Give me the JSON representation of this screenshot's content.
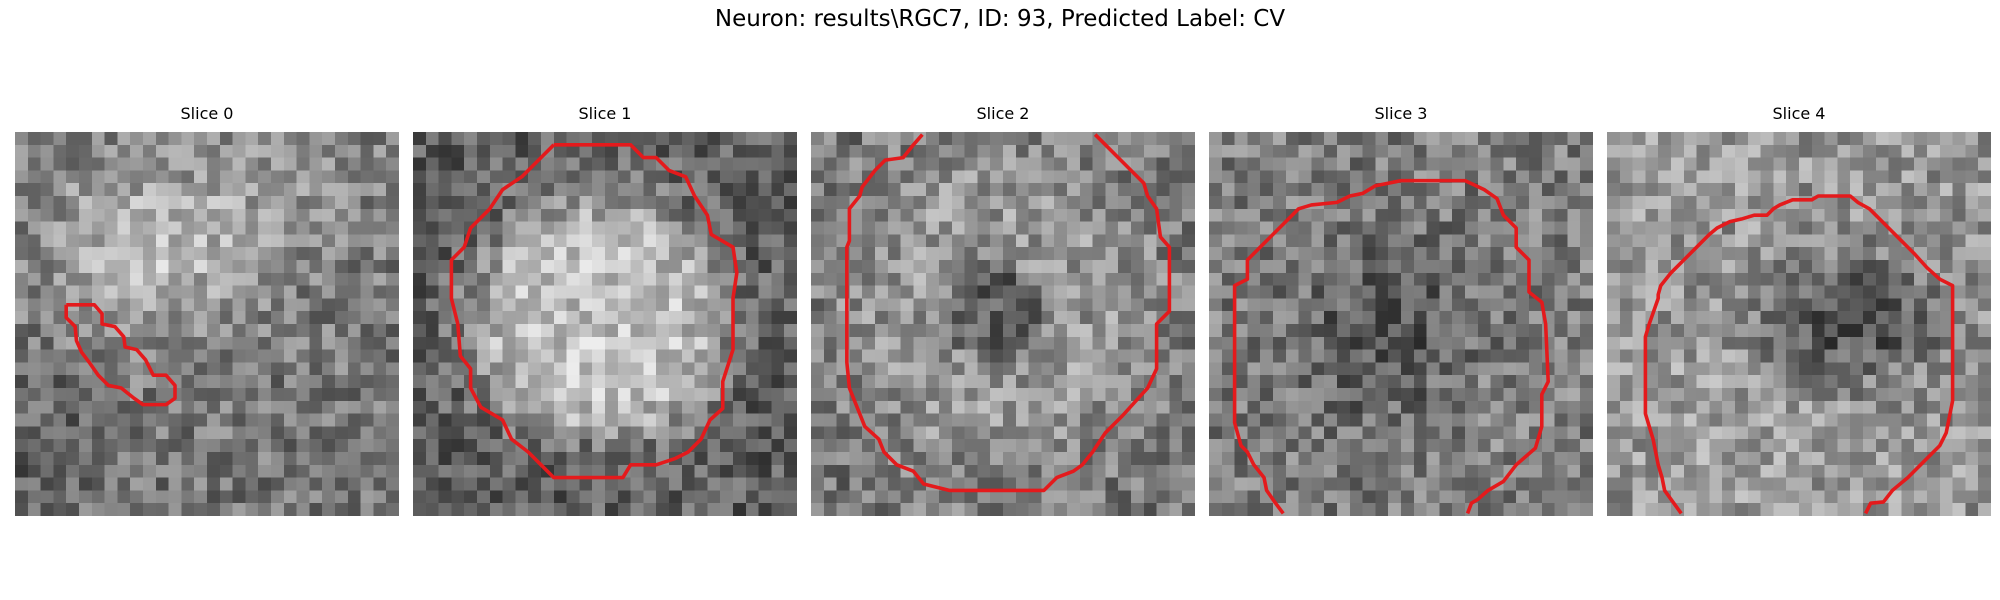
{
  "figure": {
    "title": "Neuron: results\\RGC7, ID: 93, Predicted Label: CV"
  },
  "panels": [
    {
      "title": "Slice 0",
      "seed": 11,
      "pattern": "bright-blob"
    },
    {
      "title": "Slice 1",
      "seed": 23,
      "pattern": "bright-disk"
    },
    {
      "title": "Slice 2",
      "seed": 37,
      "pattern": "ring"
    },
    {
      "title": "Slice 3",
      "seed": 41,
      "pattern": "dark-center"
    },
    {
      "title": "Slice 4",
      "seed": 59,
      "pattern": "dark-spot"
    }
  ],
  "colors": {
    "contour": "#e41a1c",
    "background": "#ffffff"
  }
}
